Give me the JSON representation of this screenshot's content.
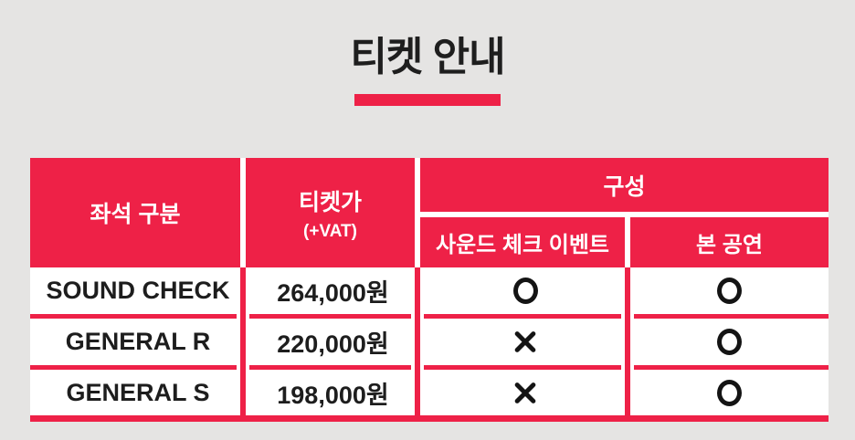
{
  "page": {
    "title": "티켓 안내",
    "background_color": "#e5e4e3",
    "accent_color": "#ee2147",
    "text_color": "#1e1e1e"
  },
  "table": {
    "headers": {
      "seat_category": "좌석 구분",
      "price_line1": "티켓가",
      "price_line2": "(+VAT)",
      "composition": "구성",
      "sub_soundcheck": "사운드 체크 이벤트",
      "sub_main_show": "본 공연"
    },
    "rows": [
      {
        "seat": "SOUND CHECK",
        "price": "264,000원",
        "soundcheck_event": "O",
        "main_show": "O"
      },
      {
        "seat": "GENERAL R",
        "price": "220,000원",
        "soundcheck_event": "X",
        "main_show": "O"
      },
      {
        "seat": "GENERAL S",
        "price": "198,000원",
        "soundcheck_event": "X",
        "main_show": "O"
      }
    ]
  }
}
